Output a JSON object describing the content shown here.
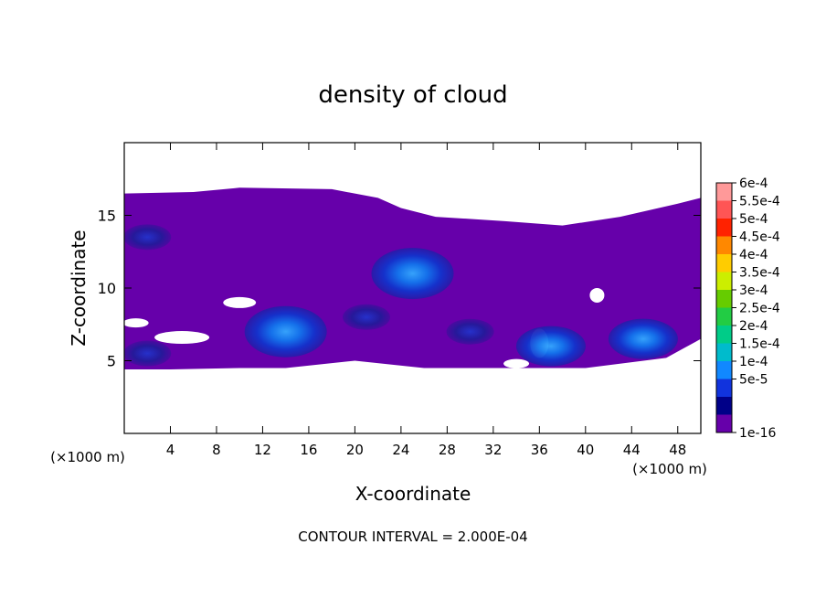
{
  "chart_data": {
    "type": "heatmap",
    "title": "density of cloud",
    "xlabel": "X-coordinate",
    "ylabel": "Z-coordinate",
    "x_unit_left": "(×1000 m)",
    "x_unit_right": "(×1000 m)",
    "xlim": [
      0,
      50
    ],
    "ylim": [
      0,
      20
    ],
    "x_ticks": [
      4,
      8,
      12,
      16,
      20,
      24,
      28,
      32,
      36,
      40,
      44,
      48
    ],
    "y_ticks": [
      5,
      10,
      15
    ],
    "footer": "CONTOUR INTERVAL = 2.000E-04",
    "colorbar": {
      "labels": [
        "6e-4",
        "5.5e-4",
        "5e-4",
        "4.5e-4",
        "4e-4",
        "3.5e-4",
        "3e-4",
        "2.5e-4",
        "2e-4",
        "1.5e-4",
        "1e-4",
        "5e-5",
        "1e-16"
      ],
      "colors": [
        "#ff9999",
        "#ff5555",
        "#ff2200",
        "#ff8800",
        "#ffcc00",
        "#ccee00",
        "#66cc00",
        "#22cc44",
        "#00cc88",
        "#00bbcc",
        "#1188ff",
        "#1133dd",
        "#000088",
        "#6600aa"
      ]
    },
    "cloud_layer": {
      "bottom_z_approx": 4.5,
      "top_z_approx": 16.5
    },
    "cells": [
      {
        "x": 14,
        "z": 7.0,
        "level": "1.5e-4"
      },
      {
        "x": 25,
        "z": 11.0,
        "level": "1.5e-4"
      },
      {
        "x": 45,
        "z": 6.5,
        "level": "1e-4"
      },
      {
        "x": 37,
        "z": 6.0,
        "level": "1e-4"
      },
      {
        "x": 2,
        "z": 13.5,
        "level": "5e-5"
      },
      {
        "x": 2,
        "z": 5.5,
        "level": "5e-5"
      },
      {
        "x": 21,
        "z": 8.0,
        "level": "5e-5"
      },
      {
        "x": 30,
        "z": 7.0,
        "level": "5e-5"
      }
    ]
  }
}
